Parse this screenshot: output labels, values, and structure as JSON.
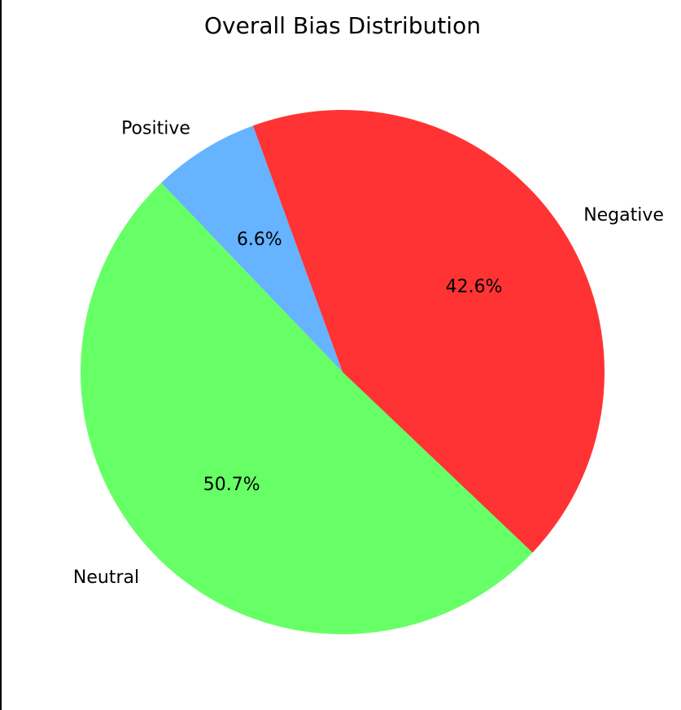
{
  "chart_data": {
    "type": "pie",
    "title": "Overall Bias Distribution",
    "slices": [
      {
        "label": "Negative",
        "value": 42.6,
        "pct_label": "42.6%",
        "color": "#ff3333"
      },
      {
        "label": "Neutral",
        "value": 50.7,
        "pct_label": "50.7%",
        "color": "#66ff66"
      },
      {
        "label": "Positive",
        "value": 6.6,
        "pct_label": "6.6%",
        "color": "#66b3ff"
      }
    ],
    "start_angle_deg": 110,
    "direction": "clockwise"
  }
}
